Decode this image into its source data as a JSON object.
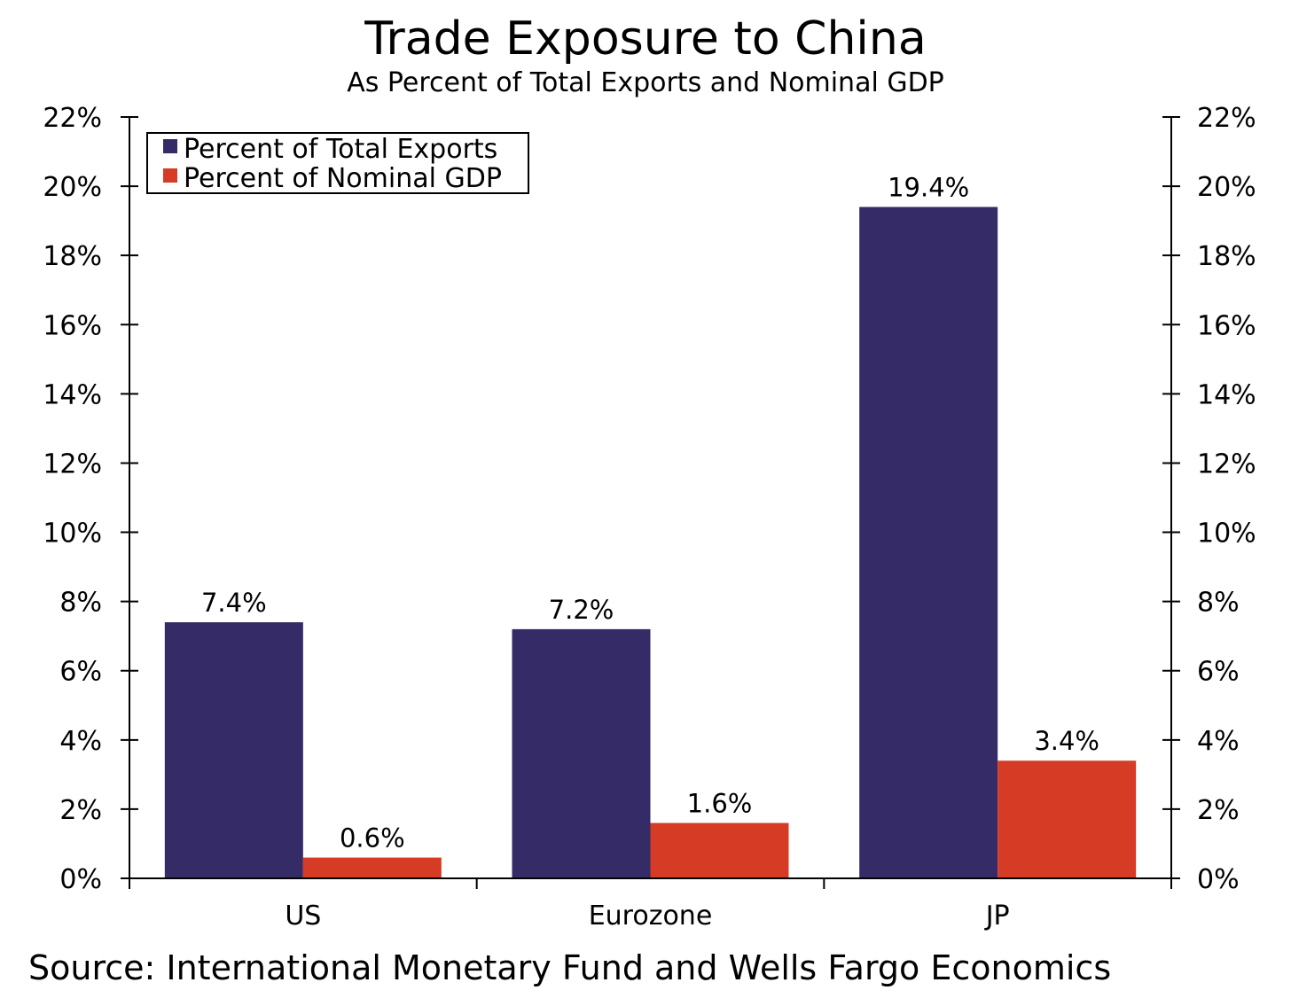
{
  "title": "Trade Exposure to China",
  "subtitle": "As Percent of Total Exports and Nominal GDP",
  "source": "Source: International Monetary Fund and Wells Fargo Economics",
  "colors": {
    "exports": "#352B67",
    "gdp": "#D63B25",
    "axis": "#000000"
  },
  "chart_data": {
    "type": "bar",
    "categories": [
      "US",
      "Eurozone",
      "JP"
    ],
    "series": [
      {
        "name": "Percent of Total Exports",
        "values": [
          7.4,
          7.2,
          19.4
        ],
        "labels": [
          "7.4%",
          "7.2%",
          "19.4%"
        ]
      },
      {
        "name": "Percent of Nominal GDP",
        "values": [
          0.6,
          1.6,
          3.4
        ],
        "labels": [
          "0.6%",
          "1.6%",
          "3.4%"
        ]
      }
    ],
    "ylim": [
      0,
      22
    ],
    "yticks": [
      "0%",
      "2%",
      "4%",
      "6%",
      "8%",
      "10%",
      "12%",
      "14%",
      "16%",
      "18%",
      "20%",
      "22%"
    ],
    "secondary_axis": true,
    "legend_position": "top-left",
    "grid": false
  }
}
